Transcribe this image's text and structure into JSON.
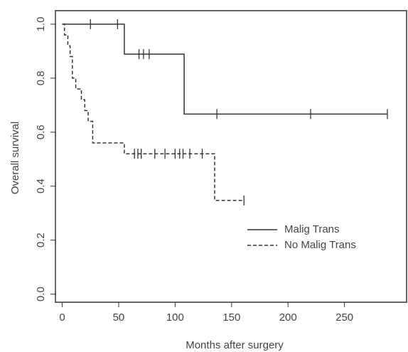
{
  "chart_data": {
    "type": "step",
    "x_label": "Months after surgery",
    "y_label": "Overall survival",
    "xlim": [
      -6,
      305
    ],
    "ylim": [
      -0.03,
      1.05
    ],
    "xticks": [
      0,
      50,
      100,
      150,
      200,
      250
    ],
    "yticks": [
      {
        "value": 0,
        "label": "0.0"
      },
      0.2,
      0.4,
      0.6,
      0.8,
      {
        "value": 1,
        "label": "1.0"
      }
    ],
    "legend": "right",
    "series": [
      {
        "name": "Malig Trans",
        "color": "#333333",
        "dashed": false,
        "x": [
          0,
          55,
          108,
          288
        ],
        "values": [
          1,
          0.889,
          0.667,
          0.667
        ],
        "censor_x": [
          25,
          49,
          68,
          72,
          77,
          137,
          220,
          288
        ],
        "censor_y": [
          1,
          1,
          0.889,
          0.889,
          0.889,
          0.667,
          0.667,
          0.667
        ]
      },
      {
        "name": "No Malig Trans",
        "color": "#333333",
        "dashed": true,
        "x": [
          0,
          2,
          5,
          7,
          9,
          12,
          17,
          20,
          23,
          27,
          55,
          135,
          161
        ],
        "values": [
          1,
          0.96,
          0.92,
          0.88,
          0.8,
          0.76,
          0.72,
          0.68,
          0.64,
          0.56,
          0.52,
          0.347,
          0.347
        ],
        "censor_x": [
          64,
          67,
          70,
          82,
          91,
          100,
          104,
          107,
          113,
          124,
          161
        ],
        "censor_y": [
          0.52,
          0.52,
          0.52,
          0.52,
          0.52,
          0.52,
          0.52,
          0.52,
          0.52,
          0.52,
          0.347
        ]
      }
    ]
  }
}
